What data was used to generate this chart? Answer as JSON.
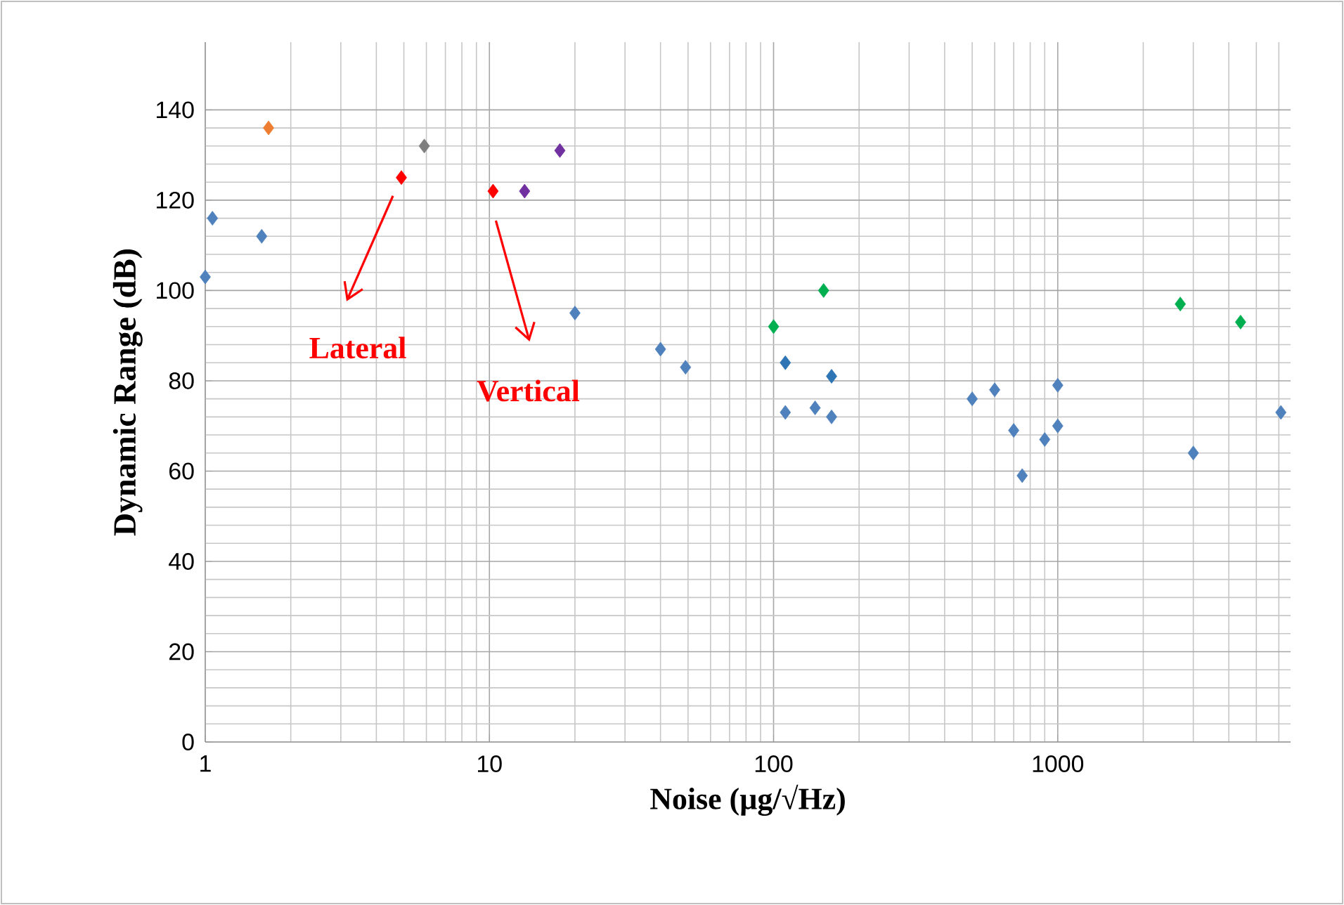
{
  "chart_data": {
    "type": "scatter",
    "xlabel": "Noise (µg/√Hz)",
    "ylabel": "Dynamic Range (dB)",
    "log": "x",
    "xlim": [
      1,
      6600
    ],
    "ylim": [
      0,
      155
    ],
    "xticks": [
      1,
      10,
      100,
      1000
    ],
    "yticks": [
      0,
      20,
      40,
      60,
      80,
      100,
      120,
      140
    ],
    "grid": true,
    "marker": "diamond",
    "series": [
      {
        "color": "#4f81bd",
        "x": [
          1,
          1.06,
          1.58,
          20,
          40,
          49,
          110,
          140,
          160,
          500,
          600,
          700,
          750,
          900,
          1000,
          1000,
          3000,
          6100
        ],
        "values": [
          103,
          116,
          112,
          95,
          87,
          83,
          73,
          74,
          72,
          76,
          78,
          69,
          59,
          67,
          70,
          79,
          64,
          73
        ]
      },
      {
        "color": "#2e75b6",
        "x": [
          110,
          160
        ],
        "values": [
          84,
          81
        ]
      },
      {
        "color": "#00b050",
        "x": [
          100,
          150,
          2700,
          4400
        ],
        "values": [
          92,
          100,
          97,
          93
        ]
      },
      {
        "color": "#ed7d31",
        "x": [
          1.67
        ],
        "values": [
          136
        ]
      },
      {
        "color": "#7f7f7f",
        "x": [
          5.9
        ],
        "values": [
          132
        ]
      },
      {
        "color": "#ff0000",
        "x": [
          4.9,
          10.3
        ],
        "values": [
          125,
          122
        ]
      },
      {
        "color": "#7030a0",
        "x": [
          13.3,
          17.7
        ],
        "values": [
          122,
          131
        ]
      }
    ],
    "annotations": [
      "Lateral",
      "Vertical"
    ]
  }
}
